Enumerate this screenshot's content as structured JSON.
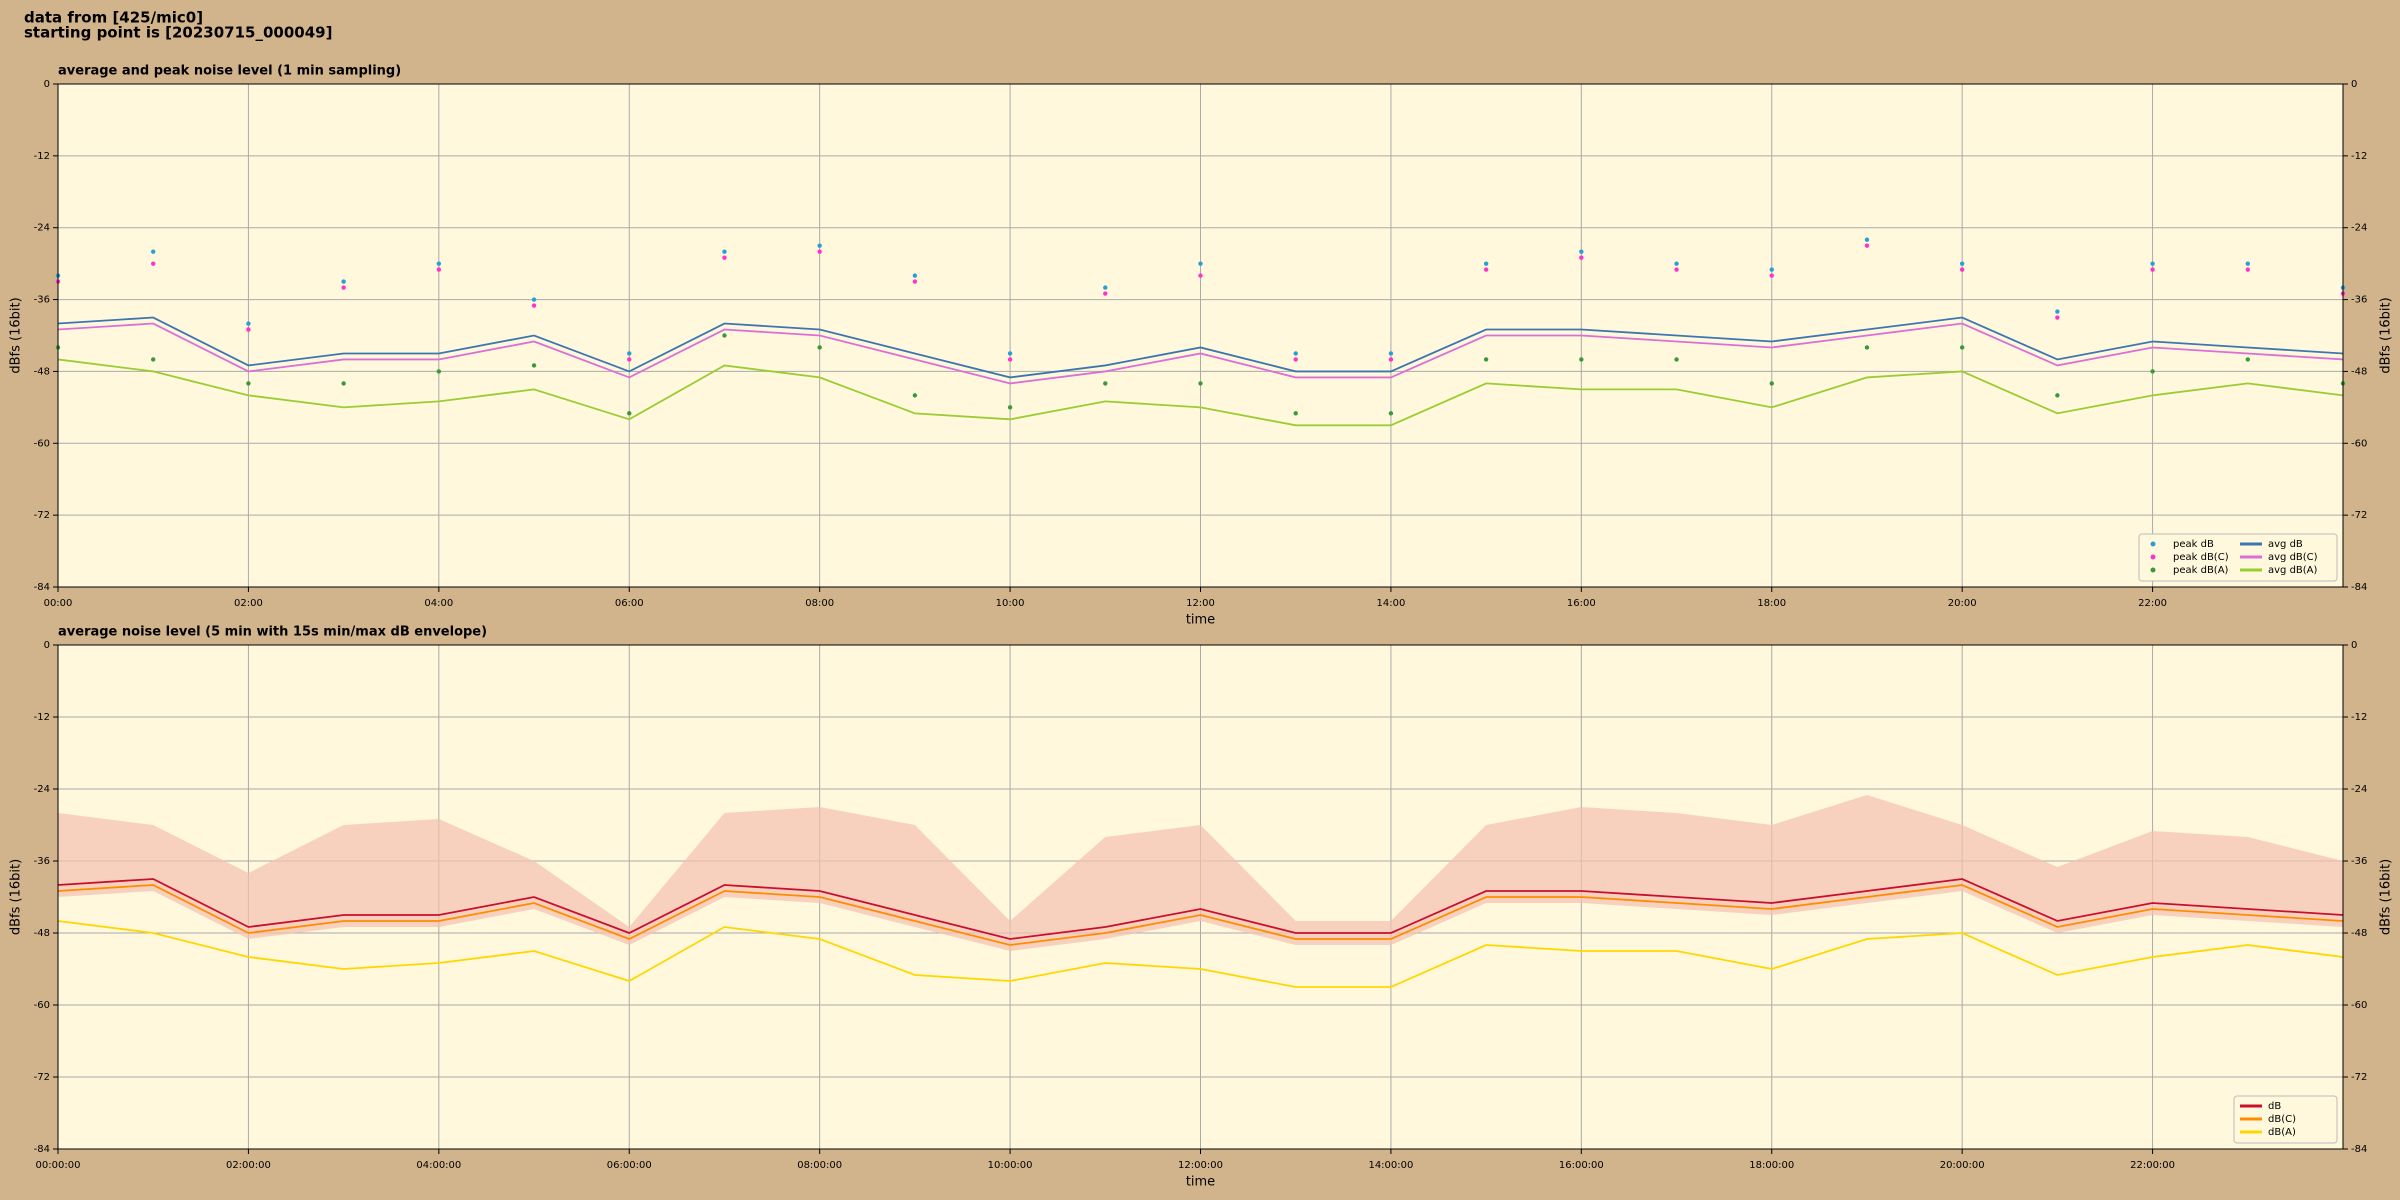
{
  "header": [
    "data from [425/mic0]",
    "starting point is [20230715_000049]"
  ],
  "chart_data": [
    {
      "type": "line",
      "title": "average and peak noise level (1 min sampling)",
      "x_label": "time",
      "y_label": "dBfs (16bit)",
      "legend": "lower right",
      "legend_columns": 2,
      "grid": true,
      "xlim": [
        0,
        24
      ],
      "ylim": [
        -84,
        0
      ],
      "xticks": [
        {
          "value": 0,
          "label": "00:00"
        },
        {
          "value": 2,
          "label": "02:00"
        },
        {
          "value": 4,
          "label": "04:00"
        },
        {
          "value": 6,
          "label": "06:00"
        },
        {
          "value": 8,
          "label": "08:00"
        },
        {
          "value": 10,
          "label": "10:00"
        },
        {
          "value": 12,
          "label": "12:00"
        },
        {
          "value": 14,
          "label": "14:00"
        },
        {
          "value": 16,
          "label": "16:00"
        },
        {
          "value": 18,
          "label": "18:00"
        },
        {
          "value": 20,
          "label": "20:00"
        },
        {
          "value": 22,
          "label": "22:00"
        }
      ],
      "yticks": [
        -84,
        -72,
        -60,
        -48,
        -36,
        -24,
        -12,
        0
      ],
      "x": [
        0,
        1,
        2,
        3,
        4,
        5,
        6,
        7,
        8,
        9,
        10,
        11,
        12,
        13,
        14,
        15,
        16,
        17,
        18,
        19,
        20,
        21,
        22,
        23,
        24
      ],
      "series": [
        {
          "name": "peak dB",
          "style": "scatter",
          "color": "#2a9fd6",
          "values": [
            -32,
            -28,
            -40,
            -33,
            -30,
            -36,
            -45,
            -28,
            -27,
            -32,
            -45,
            -34,
            -30,
            -45,
            -45,
            -30,
            -28,
            -30,
            -31,
            -26,
            -30,
            -38,
            -30,
            -30,
            -34
          ]
        },
        {
          "name": "peak dB(C)",
          "style": "scatter",
          "color": "#ff33cc",
          "values": [
            -33,
            -30,
            -41,
            -34,
            -31,
            -37,
            -46,
            -29,
            -28,
            -33,
            -46,
            -35,
            -32,
            -46,
            -46,
            -31,
            -29,
            -31,
            -32,
            -27,
            -31,
            -39,
            -31,
            -31,
            -35
          ]
        },
        {
          "name": "peak dB(A)",
          "style": "scatter",
          "color": "#3a9a3a",
          "values": [
            -44,
            -46,
            -50,
            -50,
            -48,
            -47,
            -55,
            -42,
            -44,
            -52,
            -54,
            -50,
            -50,
            -55,
            -55,
            -46,
            -46,
            -46,
            -50,
            -44,
            -44,
            -52,
            -48,
            -46,
            -50
          ]
        },
        {
          "name": "avg dB",
          "style": "line",
          "color": "#3b76b0",
          "values": [
            -40,
            -39,
            -47,
            -45,
            -45,
            -42,
            -48,
            -40,
            -41,
            -45,
            -49,
            -47,
            -44,
            -48,
            -48,
            -41,
            -41,
            -42,
            -43,
            -41,
            -39,
            -46,
            -43,
            -44,
            -45
          ]
        },
        {
          "name": "avg dB(C)",
          "style": "line",
          "color": "#da70d6",
          "values": [
            -41,
            -40,
            -48,
            -46,
            -46,
            -43,
            -49,
            -41,
            -42,
            -46,
            -50,
            -48,
            -45,
            -49,
            -49,
            -42,
            -42,
            -43,
            -44,
            -42,
            -40,
            -47,
            -44,
            -45,
            -46
          ]
        },
        {
          "name": "avg dB(A)",
          "style": "line",
          "color": "#9acd32",
          "values": [
            -46,
            -48,
            -52,
            -54,
            -53,
            -51,
            -56,
            -47,
            -49,
            -55,
            -56,
            -53,
            -54,
            -57,
            -57,
            -50,
            -51,
            -51,
            -54,
            -49,
            -48,
            -55,
            -52,
            -50,
            -52
          ]
        }
      ]
    },
    {
      "type": "line",
      "title": "average noise level (5 min with 15s min/max dB envelope)",
      "x_label": "time",
      "y_label": "dBfs (16bit)",
      "legend": "lower right",
      "legend_columns": 1,
      "grid": true,
      "xlim": [
        0,
        24
      ],
      "ylim": [
        -84,
        0
      ],
      "xticks": [
        {
          "value": 0,
          "label": "00:00:00"
        },
        {
          "value": 2,
          "label": "02:00:00"
        },
        {
          "value": 4,
          "label": "04:00:00"
        },
        {
          "value": 6,
          "label": "06:00:00"
        },
        {
          "value": 8,
          "label": "08:00:00"
        },
        {
          "value": 10,
          "label": "10:00:00"
        },
        {
          "value": 12,
          "label": "12:00:00"
        },
        {
          "value": 14,
          "label": "14:00:00"
        },
        {
          "value": 16,
          "label": "16:00:00"
        },
        {
          "value": 18,
          "label": "18:00:00"
        },
        {
          "value": 20,
          "label": "20:00:00"
        },
        {
          "value": 22,
          "label": "22:00:00"
        }
      ],
      "yticks": [
        -84,
        -72,
        -60,
        -48,
        -36,
        -24,
        -12,
        0
      ],
      "x": [
        0,
        1,
        2,
        3,
        4,
        5,
        6,
        7,
        8,
        9,
        10,
        11,
        12,
        13,
        14,
        15,
        16,
        17,
        18,
        19,
        20,
        21,
        22,
        23,
        24
      ],
      "envelope": {
        "color": "#f4c0b0",
        "max": [
          -28,
          -30,
          -38,
          -30,
          -29,
          -36,
          -47,
          -28,
          -27,
          -30,
          -46,
          -32,
          -30,
          -46,
          -46,
          -30,
          -27,
          -28,
          -30,
          -25,
          -30,
          -37,
          -31,
          -32,
          -36
        ],
        "min": [
          -42,
          -41,
          -49,
          -47,
          -47,
          -44,
          -50,
          -42,
          -43,
          -47,
          -51,
          -49,
          -46,
          -50,
          -50,
          -43,
          -43,
          -44,
          -45,
          -43,
          -41,
          -48,
          -45,
          -46,
          -47
        ]
      },
      "series": [
        {
          "name": "dB",
          "style": "line",
          "color": "#c8102e",
          "values": [
            -40,
            -39,
            -47,
            -45,
            -45,
            -42,
            -48,
            -40,
            -41,
            -45,
            -49,
            -47,
            -44,
            -48,
            -48,
            -41,
            -41,
            -42,
            -43,
            -41,
            -39,
            -46,
            -43,
            -44,
            -45
          ]
        },
        {
          "name": "dB(C)",
          "style": "line",
          "color": "#ff8c00",
          "values": [
            -41,
            -40,
            -48,
            -46,
            -46,
            -43,
            -49,
            -41,
            -42,
            -46,
            -50,
            -48,
            -45,
            -49,
            -49,
            -42,
            -42,
            -43,
            -44,
            -42,
            -40,
            -47,
            -44,
            -45,
            -46
          ]
        },
        {
          "name": "dB(A)",
          "style": "line",
          "color": "#ffd700",
          "values": [
            -46,
            -48,
            -52,
            -54,
            -53,
            -51,
            -56,
            -47,
            -49,
            -55,
            -56,
            -53,
            -54,
            -57,
            -57,
            -50,
            -51,
            -51,
            -54,
            -49,
            -48,
            -55,
            -52,
            -50,
            -52
          ]
        }
      ]
    }
  ]
}
